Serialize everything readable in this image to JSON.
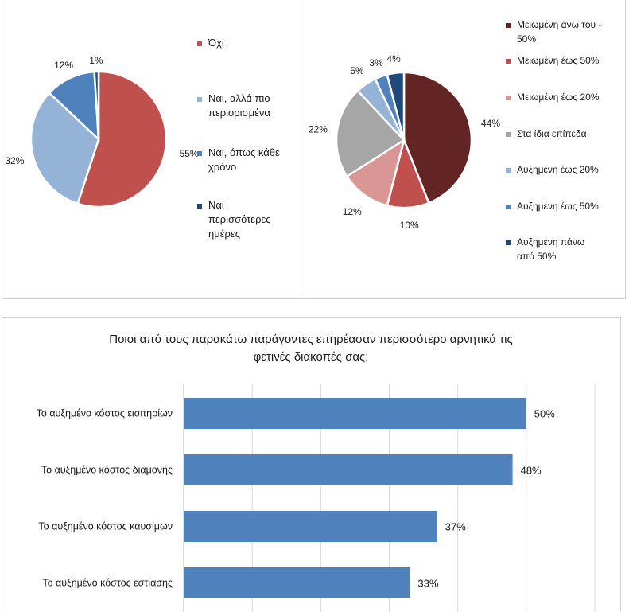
{
  "chart_data": [
    {
      "type": "pie",
      "title": "",
      "slices": [
        {
          "label": "Όχι",
          "value": 55,
          "value_label": "55%",
          "color": "#c0504d"
        },
        {
          "label": "Ναι, αλλά πιο περιορισμένα",
          "value": 32,
          "value_label": "32%",
          "color": "#95b3d7"
        },
        {
          "label": "Ναι, όπως κάθε χρόνο",
          "value": 12,
          "value_label": "12%",
          "color": "#4f81bd"
        },
        {
          "label": "Ναι περισσότερες ημέρες",
          "value": 1,
          "value_label": "1%",
          "color": "#1f497d"
        }
      ],
      "legend": {
        "placement": "right",
        "lines": [
          [
            "Όχι"
          ],
          [
            "Ναι, αλλά πιο",
            "περιορισμένα"
          ],
          [
            "Ναι, όπως κάθε",
            "χρόνο"
          ],
          [
            "Ναι",
            "περισσότερες",
            "ημέρες"
          ]
        ]
      }
    },
    {
      "type": "pie",
      "title": "",
      "slices": [
        {
          "label": "Μειωμένη άνω του - 50%",
          "value": 44,
          "value_label": "44%",
          "color": "#632523"
        },
        {
          "label": "Μειωμένη έως 50%",
          "value": 10,
          "value_label": "10%",
          "color": "#c0504d"
        },
        {
          "label": "Μειωμένη έως 20%",
          "value": 12,
          "value_label": "12%",
          "color": "#d99694"
        },
        {
          "label": "Στα ίδια επίπεδα",
          "value": 22,
          "value_label": "22%",
          "color": "#a6a6a6"
        },
        {
          "label": "Αυξημένη έως 20%",
          "value": 5,
          "value_label": "5%",
          "color": "#95b3d7"
        },
        {
          "label": "Αυξημένη έως 50%",
          "value": 3,
          "value_label": "3%",
          "color": "#4f81bd"
        },
        {
          "label": "Αυξημένη πάνω από 50%",
          "value": 4,
          "value_label": "4%",
          "color": "#1f497d"
        }
      ],
      "legend": {
        "placement": "right",
        "lines": [
          [
            "Μειωμένη άνω του -",
            "50%"
          ],
          [
            "Μειωμένη έως 50%"
          ],
          [
            "Μειωμένη έως 20%"
          ],
          [
            "Στα ίδια επίπεδα"
          ],
          [
            "Αυξημένη έως 20%"
          ],
          [
            "Αυξημένη έως 50%"
          ],
          [
            "Αυξημένη πάνω",
            "από 50%"
          ]
        ]
      }
    },
    {
      "type": "bar",
      "orientation": "horizontal",
      "title_lines": [
        "Ποιοι από τους παρακάτω παράγοντες επηρέασαν περισσότερο αρνητικά τις",
        "φετινές διακοπές σας;"
      ],
      "categories": [
        "Το αυξημένο κόστος εισιτηρίων",
        "Το αυξημένο κόστος διαμονής",
        "Το αυξημένο κόστος καυσίμων",
        "Το αυξημένο κόστος εστίασης"
      ],
      "values": [
        50,
        48,
        37,
        33
      ],
      "value_labels": [
        "50%",
        "48%",
        "37%",
        "33%"
      ],
      "xlim": [
        0,
        60
      ],
      "grid": true,
      "color": "#4f81bd"
    }
  ]
}
